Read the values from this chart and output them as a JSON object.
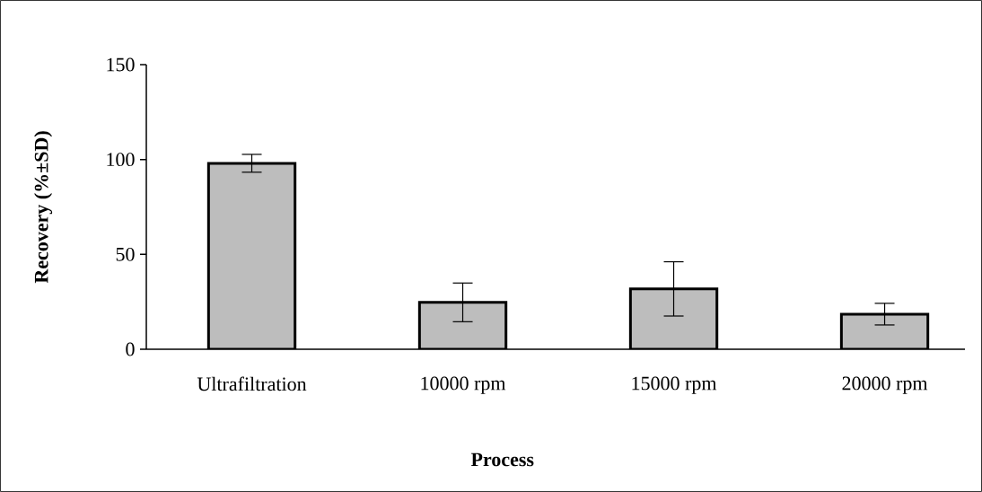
{
  "chart_data": {
    "type": "bar",
    "xlabel": "Process",
    "ylabel": "Recovery (%±SD)",
    "categories": [
      "Ultrafiltration",
      "10000 rpm",
      "15000 rpm",
      "20000 rpm"
    ],
    "values": [
      98,
      24.7,
      31.8,
      18.5
    ],
    "errors": [
      4.7,
      10.2,
      14.3,
      5.7
    ],
    "color": "#bdbdbd",
    "ylim": [
      0,
      150
    ],
    "yticks": [
      0,
      50,
      100,
      150
    ]
  }
}
